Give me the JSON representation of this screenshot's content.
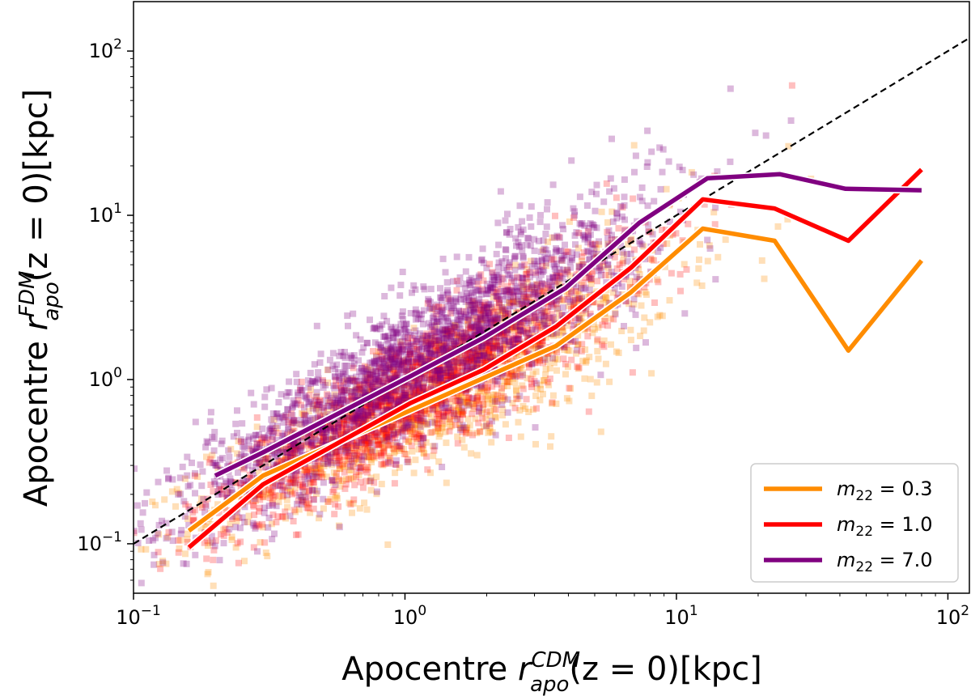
{
  "chart_data": {
    "type": "scatter",
    "title": "",
    "xlabel": {
      "prefix": "Apocentre ",
      "symbol": "r",
      "sup": "CDM",
      "sub": "apo",
      "suffix": "(z = 0)[kpc]"
    },
    "ylabel": {
      "prefix": "Apocentre ",
      "symbol": "r",
      "sup": "FDM",
      "sub": "apo",
      "suffix": "(z = 0)[kpc]"
    },
    "xscale": "log",
    "yscale": "log",
    "xlim": [
      0.1,
      120
    ],
    "ylim": [
      0.05,
      200
    ],
    "xticks": [
      {
        "value": 0.1,
        "base": "10",
        "exp": "−1"
      },
      {
        "value": 1,
        "base": "10",
        "exp": "0"
      },
      {
        "value": 10,
        "base": "10",
        "exp": "1"
      },
      {
        "value": 100,
        "base": "10",
        "exp": "2"
      }
    ],
    "yticks": [
      {
        "value": 0.1,
        "base": "10",
        "exp": "−1"
      },
      {
        "value": 1,
        "base": "10",
        "exp": "0"
      },
      {
        "value": 10,
        "base": "10",
        "exp": "1"
      },
      {
        "value": 100,
        "base": "10",
        "exp": "2"
      }
    ],
    "reference_line": {
      "name": "one-to-one",
      "style": "dashed",
      "color": "#000000",
      "x": [
        0.1,
        120
      ],
      "y": [
        0.1,
        120
      ]
    },
    "legend": {
      "location": "lower-right",
      "entries": [
        {
          "name": "m_22 = 0.3",
          "sym": "m",
          "sub": "22",
          "eq": " = 0.3",
          "color": "#ff8c00"
        },
        {
          "name": "m_22 = 1.0",
          "sym": "m",
          "sub": "22",
          "eq": " = 1.0",
          "color": "#ff0000"
        },
        {
          "name": "m_22 = 7.0",
          "sym": "m",
          "sub": "22",
          "eq": " = 7.0",
          "color": "#800080"
        }
      ]
    },
    "series": [
      {
        "name": "m_22 = 0.3",
        "color": "#ff8c00",
        "line": {
          "x": [
            0.16,
            0.3,
            1.05,
            3.6,
            6.8,
            12.5,
            23,
            43,
            80
          ],
          "y": [
            0.12,
            0.26,
            0.65,
            1.6,
            3.4,
            8.3,
            7.0,
            1.5,
            5.3
          ]
        },
        "scatter": {
          "count": 1300,
          "x_log_mean": 0.15,
          "x_log_sd": 0.42,
          "slope": 0.85,
          "offset": -0.18,
          "scatter_sd": 0.2,
          "opacity": 0.28
        }
      },
      {
        "name": "m_22 = 1.0",
        "color": "#ff0000",
        "line": {
          "x": [
            0.16,
            0.3,
            1.05,
            1.95,
            3.6,
            6.8,
            12.5,
            23,
            43,
            80
          ],
          "y": [
            0.095,
            0.23,
            0.72,
            1.15,
            2.1,
            4.8,
            12.5,
            11.0,
            7.0,
            19.0
          ]
        },
        "scatter": {
          "count": 1700,
          "x_log_mean": 0.05,
          "x_log_sd": 0.38,
          "slope": 0.95,
          "offset": -0.12,
          "scatter_sd": 0.17,
          "opacity": 0.25
        }
      },
      {
        "name": "m_22 = 7.0",
        "color": "#800080",
        "line": {
          "x": [
            0.2,
            0.3,
            1.05,
            1.95,
            3.9,
            7.3,
            13,
            24,
            42,
            80
          ],
          "y": [
            0.26,
            0.36,
            1.05,
            1.8,
            3.6,
            9.0,
            16.8,
            17.8,
            14.5,
            14.2
          ]
        },
        "scatter": {
          "count": 2200,
          "x_log_mean": 0.05,
          "x_log_sd": 0.42,
          "slope": 1.0,
          "offset": 0.05,
          "scatter_sd": 0.2,
          "opacity": 0.28
        }
      }
    ]
  }
}
